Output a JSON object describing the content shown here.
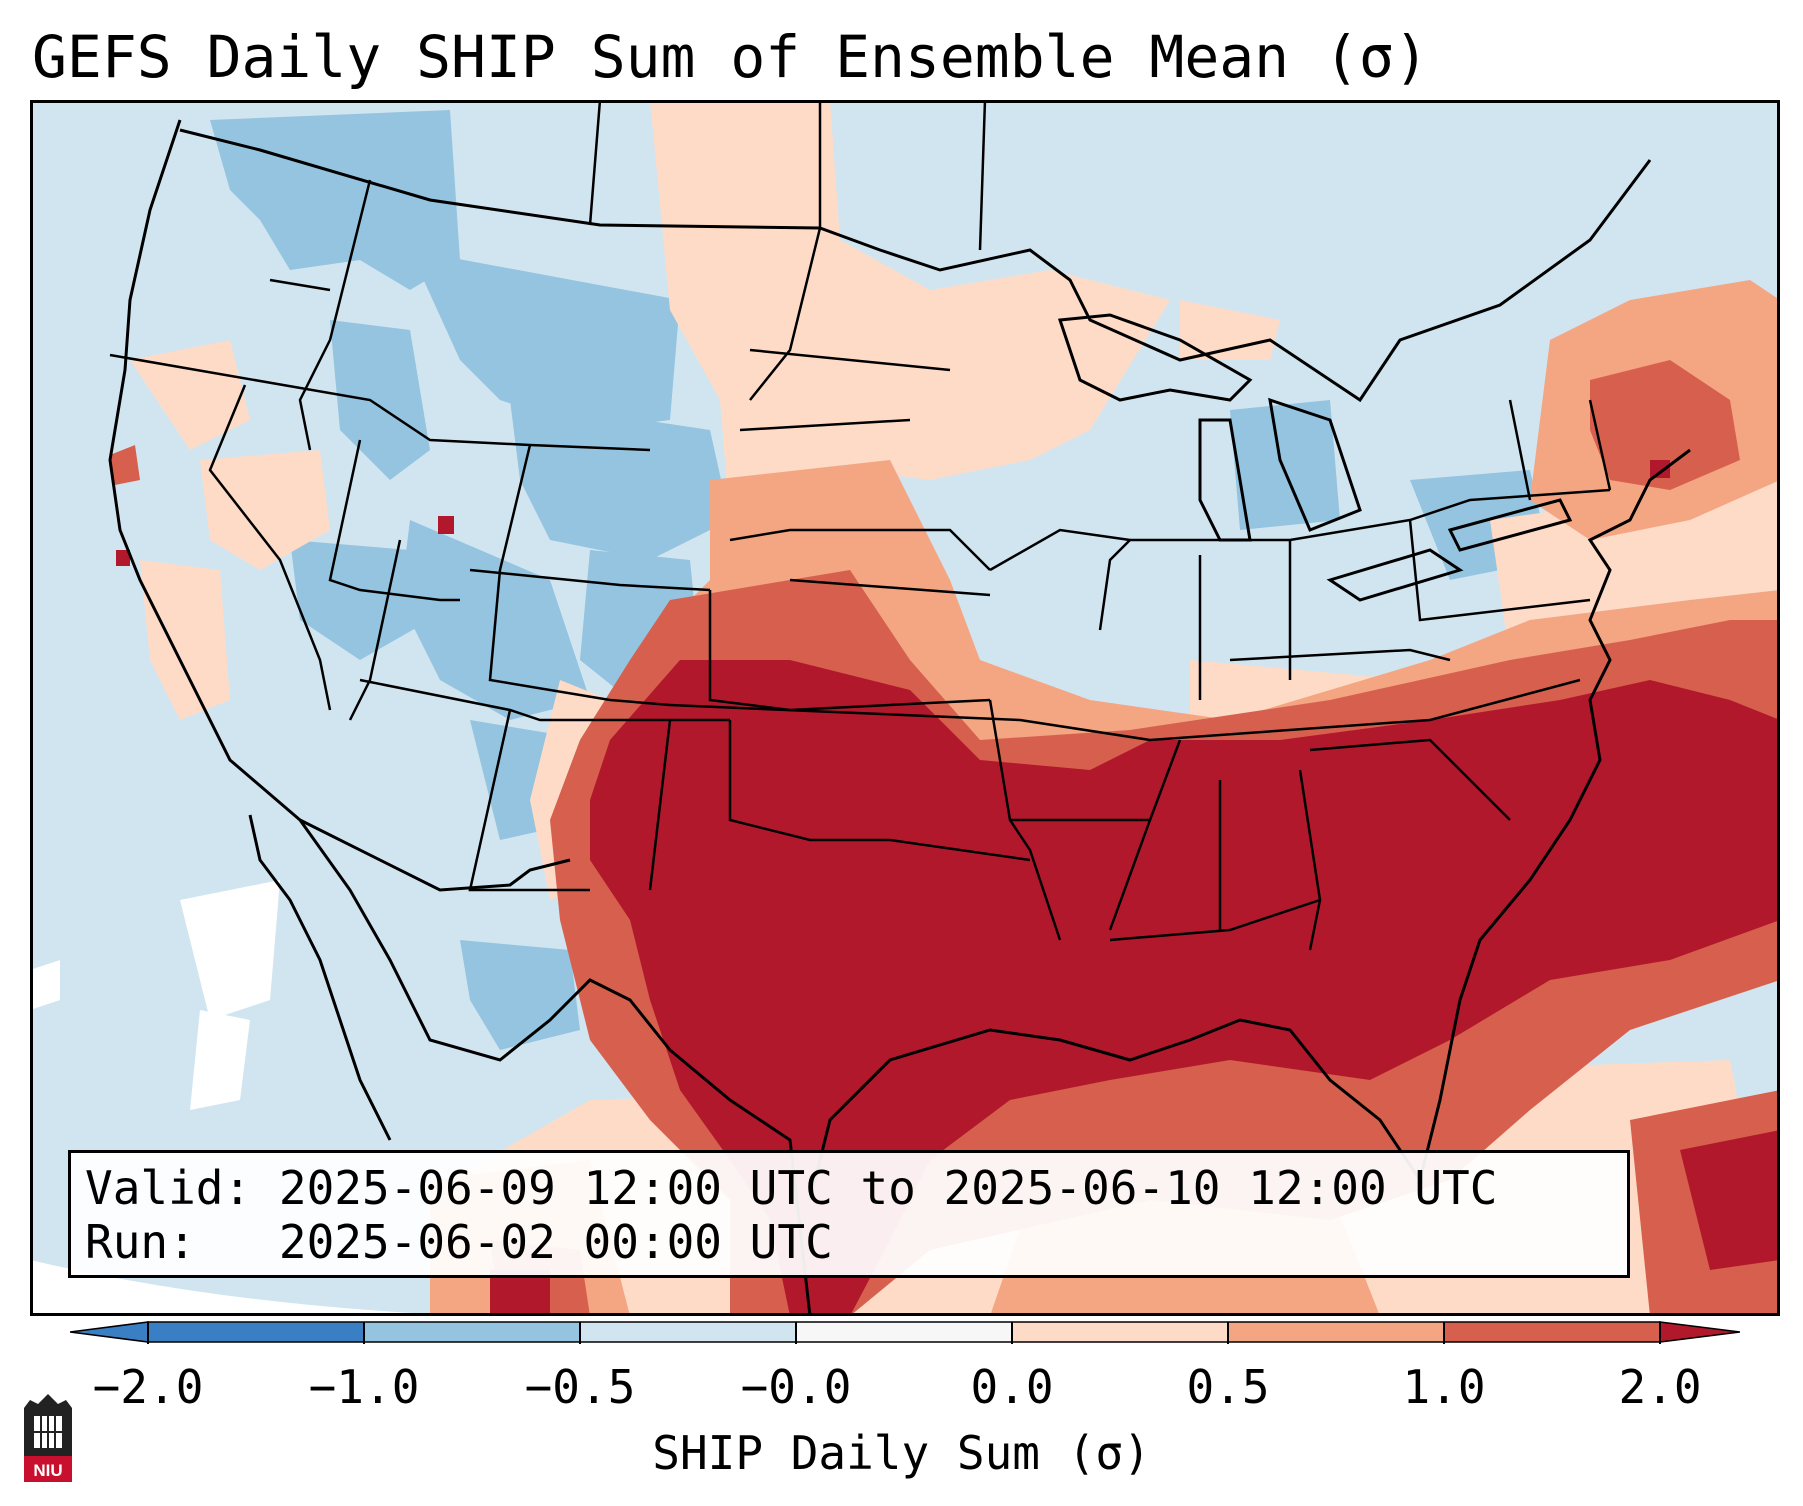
{
  "title": "GEFS Daily SHIP Sum of Ensemble Mean (σ)",
  "info": {
    "valid_label": "Valid:",
    "valid_value": "2025-06-09 12:00 UTC to 2025-06-10 12:00 UTC",
    "run_label": "Run:",
    "run_value": "2025-06-02 00:00 UTC"
  },
  "colorbar": {
    "label": "SHIP Daily Sum (σ)",
    "ticks": [
      "−2.0",
      "−1.0",
      "−0.5",
      "−0.0",
      "0.0",
      "0.5",
      "1.0",
      "2.0"
    ],
    "colors": [
      "#3a7fc4",
      "#94c4df",
      "#d1e5f0",
      "#f7f7f7",
      "#fddbc7",
      "#f4a582",
      "#d6604d",
      "#b2182b"
    ]
  },
  "logo": {
    "text": "NIU"
  },
  "map": {
    "region": "Continental United States",
    "features": [
      "state borders",
      "national borders",
      "coastlines",
      "great lakes"
    ],
    "anomaly_regions": [
      {
        "area": "Southern Plains / Texas / Oklahoma",
        "category": "> 1.0σ",
        "color": "#b2182b"
      },
      {
        "area": "Southeast US (MS, AL, GA, SC)",
        "category": "> 1.0σ",
        "color": "#b2182b"
      },
      {
        "area": "Western Atlantic offshore",
        "category": "> 1.0σ",
        "color": "#b2182b"
      },
      {
        "area": "Central Plains (KS, NE)",
        "category": "0.5 to 1.0σ",
        "color": "#f4a582"
      },
      {
        "area": "Northern Plains (Dakotas)",
        "category": "0 to 0.5σ",
        "color": "#fddbc7"
      },
      {
        "area": "Northern Rockies / Great Basin",
        "category": "-1.0 to -0.5σ",
        "color": "#94c4df"
      },
      {
        "area": "Great Lakes / Northeast",
        "category": "-0.5 to 0σ",
        "color": "#d1e5f0"
      }
    ]
  }
}
